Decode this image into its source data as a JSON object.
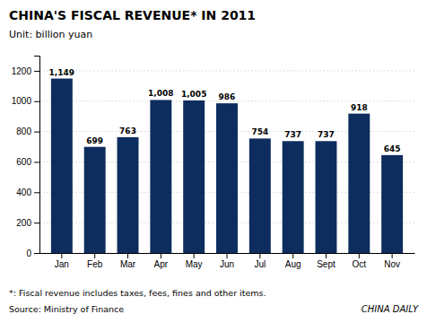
{
  "chart_data": {
    "type": "bar",
    "title": "CHINA'S FISCAL REVENUE* IN 2011",
    "subtitle": "Unit: billion yuan",
    "categories": [
      "Jan",
      "Feb",
      "Mar",
      "Apr",
      "May",
      "Jun",
      "Jul",
      "Aug",
      "Sept",
      "Oct",
      "Nov"
    ],
    "values": [
      1149,
      699,
      763,
      1008,
      1005,
      986,
      754,
      737,
      737,
      918,
      645
    ],
    "value_labels": [
      "1,149",
      "699",
      "763",
      "1,008",
      "1,005",
      "986",
      "754",
      "737",
      "737",
      "918",
      "645"
    ],
    "data_labels": true,
    "color": "#0d2d5e",
    "ylim": [
      0,
      1300
    ],
    "yticks": [
      0,
      200,
      400,
      600,
      800,
      1000,
      1200
    ],
    "grid": true,
    "annotations": [
      "*: Fiscal revenue includes taxes, fees, fines and other items.",
      "Source: Ministry of Finance",
      "CHINA DAILY"
    ]
  }
}
